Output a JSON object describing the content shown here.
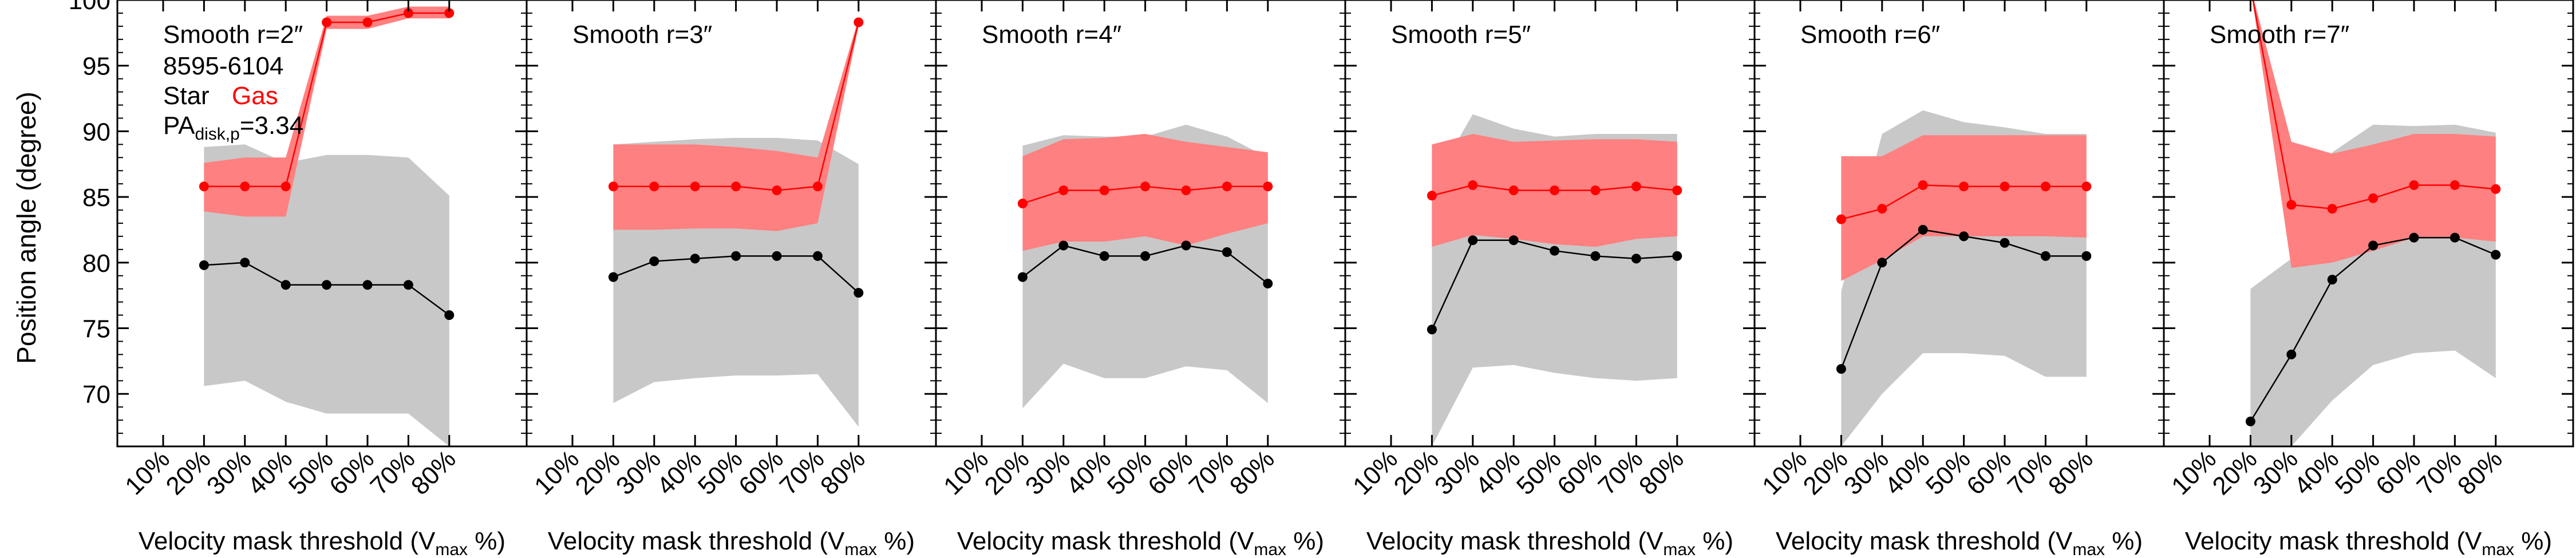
{
  "figure": {
    "ylabel": "Position angle (degree)",
    "xlabel_main": "Velocity mask threshold (V",
    "xlabel_sub": "max",
    "xlabel_end": " %)",
    "galaxy_id": "8595-6104",
    "legend_star": "Star",
    "legend_gas": "Gas",
    "pa_label_main": "PA",
    "pa_label_sub": "disk,p",
    "pa_label_value": "=3.34"
  },
  "colors": {
    "star": "#000000",
    "gas": "#ff0000",
    "star_band": "#c8c8c8",
    "gas_band": "#ff8080"
  },
  "chart_data": [
    {
      "type": "line",
      "title": "Smooth r=2″",
      "x": [
        "20%",
        "30%",
        "40%",
        "50%",
        "60%",
        "70%",
        "80%"
      ],
      "xticks": [
        "10%",
        "20%",
        "30%",
        "40%",
        "50%",
        "60%",
        "70%",
        "80%"
      ],
      "ylim": [
        66,
        100
      ],
      "yticks": [
        70,
        75,
        80,
        85,
        90,
        95,
        100
      ],
      "series": [
        {
          "name": "Star",
          "values": [
            79.8,
            80.0,
            78.3,
            78.3,
            78.3,
            78.3,
            76.0
          ],
          "lower": [
            70.6,
            71.0,
            69.4,
            68.5,
            68.5,
            68.5,
            66.0
          ],
          "upper": [
            88.8,
            89.0,
            87.6,
            88.2,
            88.2,
            88.0,
            85.1
          ]
        },
        {
          "name": "Gas",
          "values": [
            85.8,
            85.8,
            85.8,
            98.3,
            98.3,
            99.0,
            99.0
          ],
          "lower": [
            83.9,
            83.5,
            83.5,
            97.8,
            97.8,
            98.6,
            98.6
          ],
          "upper": [
            87.6,
            88.0,
            88.0,
            98.8,
            98.8,
            99.5,
            99.5
          ]
        }
      ]
    },
    {
      "type": "line",
      "title": "Smooth r=3″",
      "x": [
        "20%",
        "30%",
        "40%",
        "50%",
        "60%",
        "70%",
        "80%"
      ],
      "xticks": [
        "10%",
        "20%",
        "30%",
        "40%",
        "50%",
        "60%",
        "70%",
        "80%"
      ],
      "ylim": [
        66,
        100
      ],
      "yticks": [
        70,
        75,
        80,
        85,
        90,
        95,
        100
      ],
      "series": [
        {
          "name": "Star",
          "values": [
            78.9,
            80.1,
            80.3,
            80.5,
            80.5,
            80.5,
            77.7
          ],
          "lower": [
            69.3,
            70.9,
            71.2,
            71.4,
            71.4,
            71.5,
            67.5
          ],
          "upper": [
            89.0,
            89.2,
            89.4,
            89.5,
            89.5,
            89.3,
            87.5
          ]
        },
        {
          "name": "Gas",
          "values": [
            85.8,
            85.8,
            85.8,
            85.8,
            85.5,
            85.8,
            98.3
          ],
          "lower": [
            82.5,
            82.5,
            82.6,
            82.6,
            82.4,
            83.0,
            98.0
          ],
          "upper": [
            89.0,
            89.0,
            89.0,
            88.8,
            88.5,
            88.0,
            98.6
          ]
        }
      ]
    },
    {
      "type": "line",
      "title": "Smooth r=4″",
      "x": [
        "20%",
        "30%",
        "40%",
        "50%",
        "60%",
        "70%",
        "80%"
      ],
      "xticks": [
        "10%",
        "20%",
        "30%",
        "40%",
        "50%",
        "60%",
        "70%",
        "80%"
      ],
      "ylim": [
        66,
        100
      ],
      "yticks": [
        70,
        75,
        80,
        85,
        90,
        95,
        100
      ],
      "series": [
        {
          "name": "Star",
          "values": [
            78.9,
            81.3,
            80.5,
            80.5,
            81.3,
            80.8,
            78.4
          ],
          "lower": [
            68.9,
            72.3,
            71.2,
            71.2,
            72.1,
            71.8,
            69.3
          ],
          "upper": [
            88.9,
            89.7,
            89.6,
            89.6,
            90.5,
            89.6,
            88.0
          ]
        },
        {
          "name": "Gas",
          "values": [
            84.5,
            85.5,
            85.5,
            85.8,
            85.5,
            85.8,
            85.8
          ],
          "lower": [
            80.9,
            81.6,
            81.6,
            82.0,
            81.3,
            82.2,
            83.0
          ],
          "upper": [
            88.1,
            89.4,
            89.5,
            89.8,
            89.2,
            88.8,
            88.4
          ]
        }
      ]
    },
    {
      "type": "line",
      "title": "Smooth r=5″",
      "x": [
        "20%",
        "30%",
        "40%",
        "50%",
        "60%",
        "70%",
        "80%"
      ],
      "xticks": [
        "10%",
        "20%",
        "30%",
        "40%",
        "50%",
        "60%",
        "70%",
        "80%"
      ],
      "ylim": [
        66,
        100
      ],
      "yticks": [
        70,
        75,
        80,
        85,
        90,
        95,
        100
      ],
      "series": [
        {
          "name": "Star",
          "values": [
            74.9,
            81.7,
            81.7,
            80.9,
            80.5,
            80.3,
            80.5
          ],
          "lower": [
            66.0,
            72.0,
            72.2,
            71.6,
            71.2,
            71.0,
            71.2
          ],
          "upper": [
            85.9,
            91.3,
            90.2,
            89.6,
            89.8,
            89.8,
            89.8
          ]
        },
        {
          "name": "Gas",
          "values": [
            85.1,
            85.9,
            85.5,
            85.5,
            85.5,
            85.8,
            85.5
          ],
          "lower": [
            81.2,
            82.1,
            81.8,
            81.4,
            81.2,
            81.8,
            82.0
          ],
          "upper": [
            89.0,
            89.8,
            89.2,
            89.3,
            89.4,
            89.4,
            89.2
          ]
        }
      ]
    },
    {
      "type": "line",
      "title": "Smooth r=6″",
      "x": [
        "20%",
        "30%",
        "40%",
        "50%",
        "60%",
        "70%",
        "80%"
      ],
      "xticks": [
        "10%",
        "20%",
        "30%",
        "40%",
        "50%",
        "60%",
        "70%",
        "80%"
      ],
      "ylim": [
        66,
        100
      ],
      "yticks": [
        70,
        75,
        80,
        85,
        90,
        95,
        100
      ],
      "series": [
        {
          "name": "Star",
          "values": [
            71.9,
            80.0,
            82.5,
            82.0,
            81.5,
            80.5,
            80.5
          ],
          "lower": [
            66.0,
            70.0,
            73.1,
            73.1,
            72.9,
            71.3,
            71.3
          ],
          "upper": [
            77.8,
            89.8,
            91.6,
            90.7,
            90.3,
            89.8,
            89.8
          ]
        },
        {
          "name": "Gas",
          "values": [
            83.3,
            84.1,
            85.9,
            85.8,
            85.8,
            85.8,
            85.8
          ],
          "lower": [
            78.6,
            80.2,
            82.0,
            82.0,
            82.0,
            82.0,
            81.9
          ],
          "upper": [
            88.1,
            88.1,
            89.7,
            89.7,
            89.7,
            89.7,
            89.7
          ]
        }
      ]
    },
    {
      "type": "line",
      "title": "Smooth r=7″",
      "x": [
        "20%",
        "30%",
        "40%",
        "50%",
        "60%",
        "70%",
        "80%"
      ],
      "xticks": [
        "10%",
        "20%",
        "30%",
        "40%",
        "50%",
        "60%",
        "70%",
        "80%"
      ],
      "ylim": [
        66,
        100
      ],
      "yticks": [
        70,
        75,
        80,
        85,
        90,
        95,
        100
      ],
      "series": [
        {
          "name": "Star",
          "values": [
            67.9,
            73.0,
            78.7,
            81.3,
            81.9,
            81.9,
            80.6
          ],
          "lower": [
            66.0,
            66.0,
            69.5,
            72.2,
            73.1,
            73.3,
            71.2
          ],
          "upper": [
            78.0,
            80.3,
            88.4,
            90.5,
            90.4,
            90.5,
            89.9
          ]
        },
        {
          "name": "Gas",
          "values": [
            101.0,
            84.4,
            84.1,
            84.9,
            85.9,
            85.9,
            85.6
          ],
          "lower": [
            101.0,
            79.6,
            80.0,
            80.9,
            81.9,
            81.9,
            81.6
          ],
          "upper": [
            101.0,
            89.2,
            88.3,
            89.0,
            89.8,
            89.8,
            89.6
          ]
        }
      ]
    }
  ]
}
